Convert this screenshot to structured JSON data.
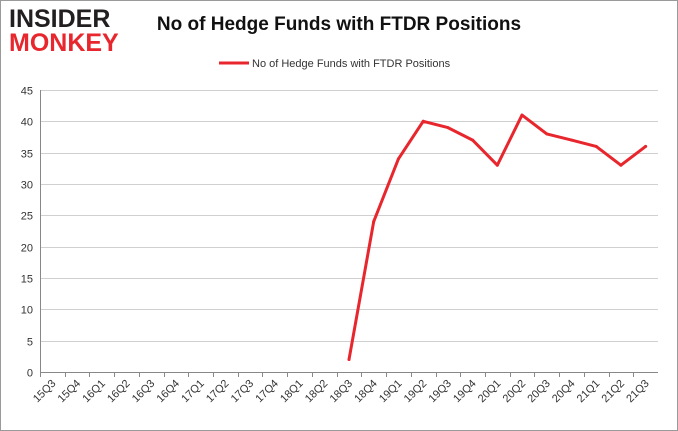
{
  "logo": {
    "line1": "INSIDER",
    "line2": "MONKEY"
  },
  "chart_data": {
    "type": "line",
    "title": "No of Hedge Funds with FTDR Positions",
    "xlabel": "",
    "ylabel": "",
    "ylim": [
      0,
      45
    ],
    "yticks": [
      0,
      5,
      10,
      15,
      20,
      25,
      30,
      35,
      40,
      45
    ],
    "grid": true,
    "legend_position": "top-center",
    "categories": [
      "15Q3",
      "15Q4",
      "16Q1",
      "16Q2",
      "16Q3",
      "16Q4",
      "17Q1",
      "17Q2",
      "17Q3",
      "17Q4",
      "18Q1",
      "18Q2",
      "18Q3",
      "18Q4",
      "19Q1",
      "19Q2",
      "19Q3",
      "19Q4",
      "20Q1",
      "20Q2",
      "20Q3",
      "20Q4",
      "21Q1",
      "21Q2",
      "21Q3"
    ],
    "series": [
      {
        "name": "No of Hedge Funds with FTDR Positions",
        "color": "#e8262d",
        "values": [
          null,
          null,
          null,
          null,
          null,
          null,
          null,
          null,
          null,
          null,
          null,
          null,
          2,
          24,
          34,
          40,
          39,
          37,
          33,
          41,
          38,
          37,
          36,
          33,
          36
        ]
      }
    ]
  }
}
